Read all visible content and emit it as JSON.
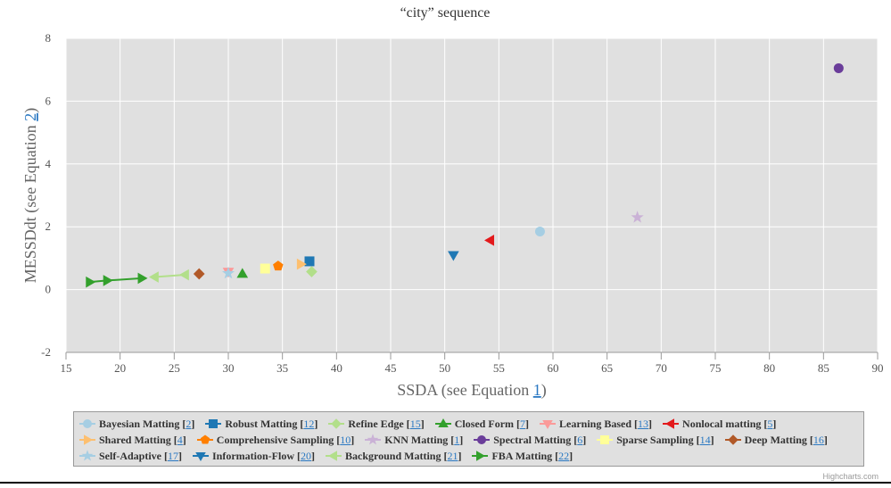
{
  "chart_data": {
    "type": "scatter",
    "title": "“city” sequence",
    "xlabel": {
      "text": "SSDA (see Equation ",
      "ref": "1",
      "suffix": ")"
    },
    "ylabel": {
      "text": "MESSDdt (see Equation ",
      "ref": "2",
      "suffix": ")"
    },
    "xlim": [
      15,
      90
    ],
    "ylim": [
      -2,
      8
    ],
    "xticks": [
      15,
      20,
      25,
      30,
      35,
      40,
      45,
      50,
      55,
      60,
      65,
      70,
      75,
      80,
      85,
      90
    ],
    "yticks": [
      -2,
      0,
      2,
      4,
      6,
      8
    ],
    "grid": true,
    "legend_position": "bottom",
    "series": [
      {
        "name": "Bayesian Matting",
        "ref": "2",
        "symbol": "circle",
        "color": "#a6cee3",
        "points": [
          [
            58.8,
            1.85
          ]
        ]
      },
      {
        "name": "Robust Matting",
        "ref": "12",
        "symbol": "square",
        "color": "#1f78b4",
        "points": [
          [
            37.5,
            0.9
          ]
        ]
      },
      {
        "name": "Refine Edge",
        "ref": "15",
        "symbol": "diamond",
        "color": "#b2df8a",
        "points": [
          [
            37.7,
            0.57
          ]
        ]
      },
      {
        "name": "Closed Form",
        "ref": "7",
        "symbol": "triangle-up",
        "color": "#33a02c",
        "points": [
          [
            31.3,
            0.5
          ]
        ]
      },
      {
        "name": "Learning Based",
        "ref": "13",
        "symbol": "triangle-down",
        "color": "#fb9a99",
        "points": [
          [
            30.0,
            0.57
          ]
        ]
      },
      {
        "name": "Nonlocal matting",
        "ref": "5",
        "symbol": "triangle-left",
        "color": "#e31a1c",
        "points": [
          [
            54.2,
            1.57
          ]
        ]
      },
      {
        "name": "Shared Matting",
        "ref": "4",
        "symbol": "triangle-right",
        "color": "#fdbf6f",
        "points": [
          [
            36.7,
            0.81
          ]
        ]
      },
      {
        "name": "Comprehensive Sampling",
        "ref": "10",
        "symbol": "pentagon",
        "color": "#ff7f00",
        "points": [
          [
            34.6,
            0.75
          ]
        ]
      },
      {
        "name": "KNN Matting",
        "ref": "1",
        "symbol": "star",
        "color": "#cab2d6",
        "points": [
          [
            67.8,
            2.3
          ]
        ]
      },
      {
        "name": "Spectral Matting",
        "ref": "6",
        "symbol": "circle",
        "color": "#6a3d9a",
        "points": [
          [
            86.4,
            7.05
          ]
        ]
      },
      {
        "name": "Sparse Sampling",
        "ref": "14",
        "symbol": "square",
        "color": "#ffff99",
        "points": [
          [
            33.4,
            0.67
          ]
        ]
      },
      {
        "name": "Deep Matting",
        "ref": "16",
        "symbol": "diamond",
        "color": "#b15928",
        "points": [
          [
            27.3,
            0.5
          ]
        ]
      },
      {
        "name": "Self-Adaptive",
        "ref": "17",
        "symbol": "star",
        "color": "#a6cee3",
        "points": [
          [
            30.0,
            0.52
          ]
        ]
      },
      {
        "name": "Information-Flow",
        "ref": "20",
        "symbol": "triangle-down",
        "color": "#1f78b4",
        "points": [
          [
            50.8,
            1.1
          ]
        ]
      },
      {
        "name": "Background Matting",
        "ref": "21",
        "symbol": "triangle-left",
        "color": "#b2df8a",
        "line": true,
        "points": [
          [
            23.2,
            0.4
          ],
          [
            26.0,
            0.47
          ]
        ]
      },
      {
        "name": "FBA Matting",
        "ref": "22",
        "symbol": "triangle-right",
        "color": "#33a02c",
        "line": true,
        "points": [
          [
            17.2,
            0.24
          ],
          [
            18.8,
            0.29
          ],
          [
            22.0,
            0.36
          ]
        ]
      }
    ],
    "credits": "Highcharts.com"
  }
}
